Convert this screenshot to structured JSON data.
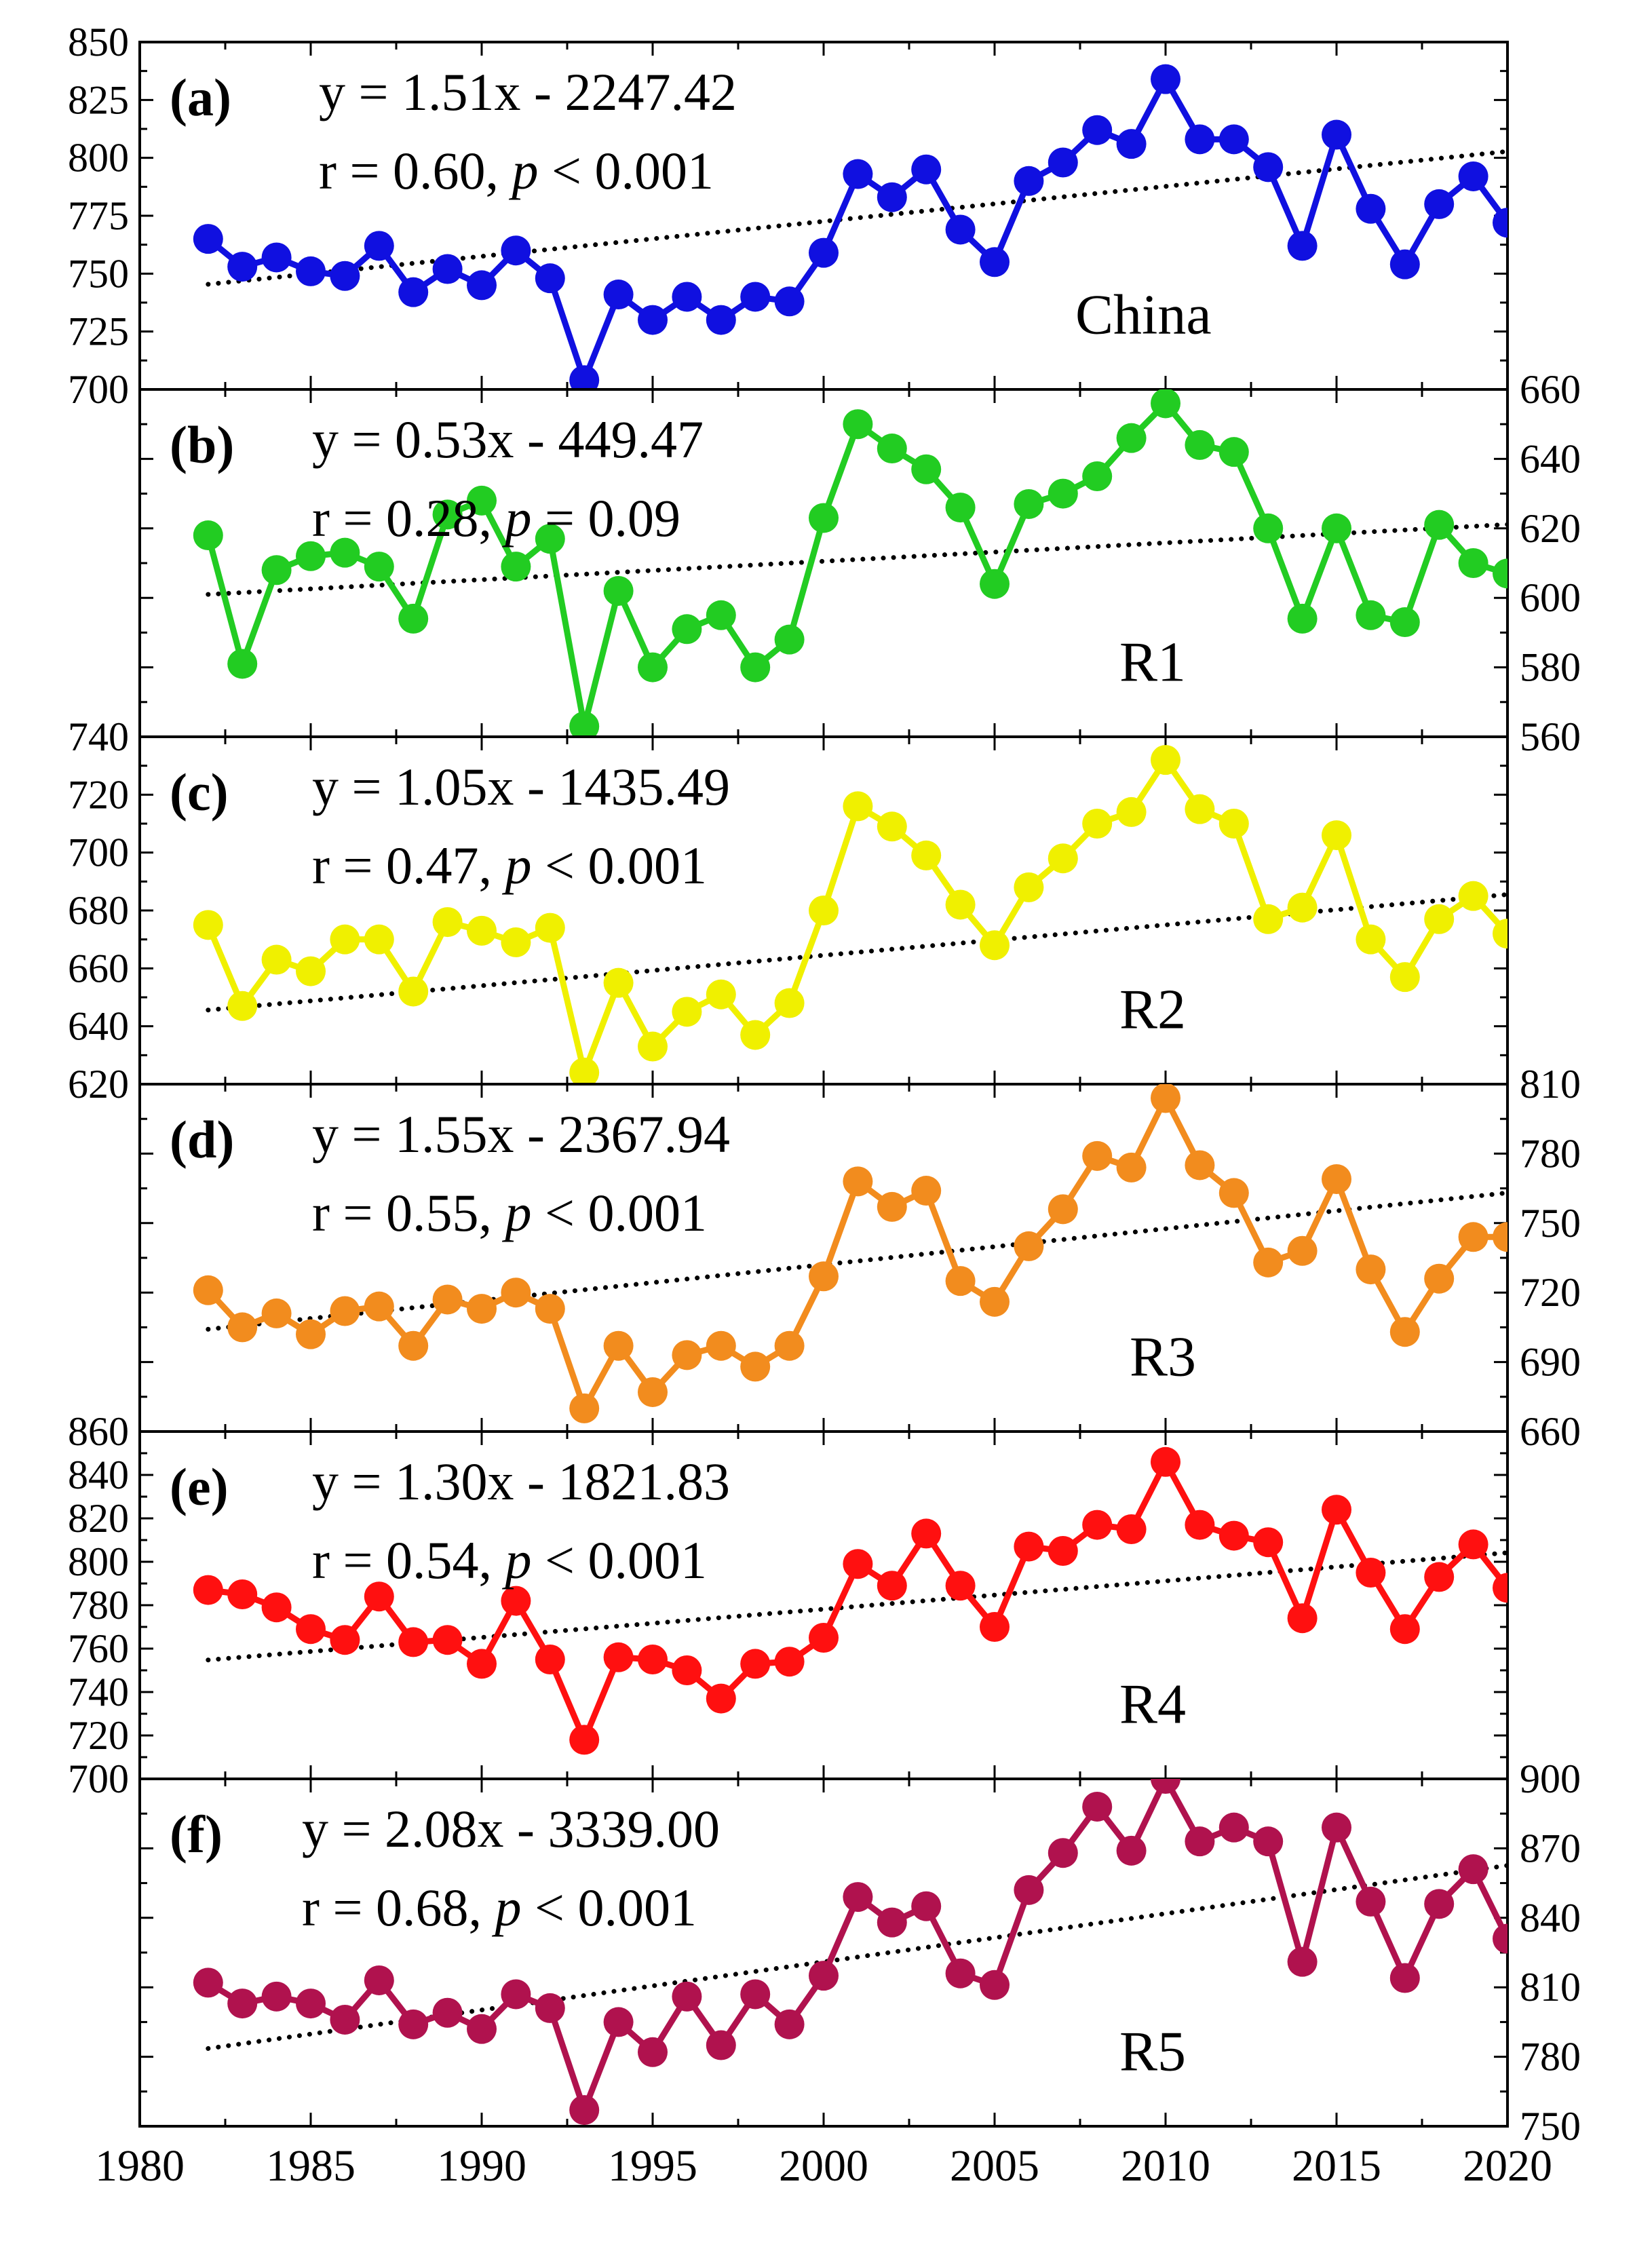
{
  "figure": {
    "x_axis": {
      "min": 1980,
      "max": 2020,
      "ticks": [
        1980,
        1985,
        1990,
        1995,
        2000,
        2005,
        2010,
        2015,
        2020
      ]
    }
  },
  "chart_data": [
    {
      "type": "scatter",
      "panel": "(a)",
      "region": "China",
      "color": "#1010e0",
      "axis_side": "left",
      "ylim": [
        700,
        850
      ],
      "yticks": [
        700,
        725,
        750,
        775,
        800,
        825,
        850
      ],
      "ytick_labels": [
        "700",
        "725",
        "750",
        "775",
        "800",
        "825",
        "850"
      ],
      "equation": "y = 1.51x - 2247.42",
      "r_text": "r = 0.60, ",
      "p_symbol": "p",
      "p_text": " < 0.001",
      "trend": {
        "slope": 1.51,
        "intercept": -2247.42
      },
      "x": [
        1982,
        1983,
        1984,
        1985,
        1986,
        1987,
        1988,
        1989,
        1990,
        1991,
        1992,
        1993,
        1994,
        1995,
        1996,
        1997,
        1998,
        1999,
        2000,
        2001,
        2002,
        2003,
        2004,
        2005,
        2006,
        2007,
        2008,
        2009,
        2010,
        2011,
        2012,
        2013,
        2014,
        2015,
        2016,
        2017,
        2018,
        2019,
        2020
      ],
      "y": [
        765,
        753,
        757,
        751,
        749,
        762,
        742,
        752,
        745,
        760,
        748,
        704,
        741,
        730,
        740,
        730,
        740,
        738,
        759,
        793,
        783,
        795,
        769,
        755,
        790,
        798,
        812,
        806,
        834,
        808,
        808,
        796,
        762,
        810,
        778,
        754,
        780,
        792,
        772
      ]
    },
    {
      "type": "scatter",
      "panel": "(b)",
      "region": "R1",
      "color": "#22cc22",
      "axis_side": "right",
      "ylim": [
        560,
        660
      ],
      "yticks": [
        560,
        580,
        600,
        620,
        640,
        660
      ],
      "ytick_labels": [
        "560",
        "580",
        "600",
        "620",
        "640",
        "660"
      ],
      "equation": "y = 0.53x - 449.47",
      "r_text": "r = 0.28, ",
      "p_symbol": "p",
      "p_text": " = 0.09",
      "trend": {
        "slope": 0.53,
        "intercept": -449.47
      },
      "x": [
        1982,
        1983,
        1984,
        1985,
        1986,
        1987,
        1988,
        1989,
        1990,
        1991,
        1992,
        1993,
        1994,
        1995,
        1996,
        1997,
        1998,
        1999,
        2000,
        2001,
        2002,
        2003,
        2004,
        2005,
        2006,
        2007,
        2008,
        2009,
        2010,
        2011,
        2012,
        2013,
        2014,
        2015,
        2016,
        2017,
        2018,
        2019,
        2020
      ],
      "y": [
        618,
        581,
        608,
        612,
        613,
        609,
        594,
        624,
        628,
        609,
        617,
        563,
        602,
        580,
        591,
        595,
        580,
        588,
        623,
        650,
        643,
        637,
        626,
        604,
        627,
        630,
        635,
        646,
        656,
        644,
        642,
        620,
        594,
        620,
        595,
        593,
        621,
        610,
        607
      ]
    },
    {
      "type": "scatter",
      "panel": "(c)",
      "region": "R2",
      "color": "#f0f000",
      "axis_side": "left",
      "ylim": [
        620,
        740
      ],
      "yticks": [
        620,
        640,
        660,
        680,
        700,
        720,
        740
      ],
      "ytick_labels": [
        "620",
        "640",
        "660",
        "680",
        "700",
        "720",
        "740"
      ],
      "equation": "y = 1.05x - 1435.49",
      "r_text": "r = 0.47, ",
      "p_symbol": "p",
      "p_text": " < 0.001",
      "trend": {
        "slope": 1.05,
        "intercept": -1435.49
      },
      "x": [
        1982,
        1983,
        1984,
        1985,
        1986,
        1987,
        1988,
        1989,
        1990,
        1991,
        1992,
        1993,
        1994,
        1995,
        1996,
        1997,
        1998,
        1999,
        2000,
        2001,
        2002,
        2003,
        2004,
        2005,
        2006,
        2007,
        2008,
        2009,
        2010,
        2011,
        2012,
        2013,
        2014,
        2015,
        2016,
        2017,
        2018,
        2019,
        2020
      ],
      "y": [
        675,
        647,
        663,
        659,
        670,
        670,
        652,
        676,
        673,
        669,
        674,
        624,
        655,
        633,
        645,
        651,
        637,
        648,
        680,
        716,
        709,
        699,
        682,
        668,
        688,
        698,
        710,
        714,
        732,
        715,
        710,
        677,
        681,
        706,
        670,
        657,
        677,
        685,
        672
      ]
    },
    {
      "type": "scatter",
      "panel": "(d)",
      "region": "R3",
      "color": "#f28c1e",
      "axis_side": "right",
      "ylim": [
        660,
        810
      ],
      "yticks": [
        660,
        690,
        720,
        750,
        780,
        810
      ],
      "ytick_labels": [
        "660",
        "690",
        "720",
        "750",
        "780",
        "810"
      ],
      "equation": "y = 1.55x - 2367.94",
      "r_text": "r = 0.55, ",
      "p_symbol": "p",
      "p_text": " < 0.001",
      "trend": {
        "slope": 1.55,
        "intercept": -2367.94
      },
      "x": [
        1982,
        1983,
        1984,
        1985,
        1986,
        1987,
        1988,
        1989,
        1990,
        1991,
        1992,
        1993,
        1994,
        1995,
        1996,
        1997,
        1998,
        1999,
        2000,
        2001,
        2002,
        2003,
        2004,
        2005,
        2006,
        2007,
        2008,
        2009,
        2010,
        2011,
        2012,
        2013,
        2014,
        2015,
        2016,
        2017,
        2018,
        2019,
        2020
      ],
      "y": [
        721,
        705,
        711,
        702,
        712,
        714,
        697,
        717,
        713,
        720,
        713,
        670,
        697,
        677,
        693,
        697,
        688,
        697,
        727,
        768,
        757,
        764,
        725,
        716,
        740,
        756,
        779,
        774,
        804,
        775,
        763,
        733,
        738,
        769,
        730,
        703,
        726,
        744,
        744
      ]
    },
    {
      "type": "scatter",
      "panel": "(e)",
      "region": "R4",
      "color": "#ff1010",
      "axis_side": "left",
      "ylim": [
        700,
        860
      ],
      "yticks": [
        700,
        720,
        740,
        760,
        780,
        800,
        820,
        840,
        860
      ],
      "ytick_labels": [
        "700",
        "720",
        "740",
        "760",
        "780",
        "800",
        "820",
        "840",
        "860"
      ],
      "equation": "y = 1.30x - 1821.83",
      "r_text": "r = 0.54, ",
      "p_symbol": "p",
      "p_text": " < 0.001",
      "trend": {
        "slope": 1.3,
        "intercept": -1821.83
      },
      "x": [
        1982,
        1983,
        1984,
        1985,
        1986,
        1987,
        1988,
        1989,
        1990,
        1991,
        1992,
        1993,
        1994,
        1995,
        1996,
        1997,
        1998,
        1999,
        2000,
        2001,
        2002,
        2003,
        2004,
        2005,
        2006,
        2007,
        2008,
        2009,
        2010,
        2011,
        2012,
        2013,
        2014,
        2015,
        2016,
        2017,
        2018,
        2019,
        2020
      ],
      "y": [
        787,
        785,
        779,
        769,
        764,
        784,
        763,
        764,
        753,
        782,
        755,
        718,
        756,
        755,
        750,
        737,
        753,
        754,
        765,
        799,
        789,
        813,
        789,
        770,
        807,
        805,
        817,
        815,
        846,
        817,
        812,
        809,
        774,
        824,
        795,
        769,
        793,
        808,
        788
      ]
    },
    {
      "type": "scatter",
      "panel": "(f)",
      "region": "R5",
      "color": "#b0124e",
      "axis_side": "right",
      "ylim": [
        750,
        900
      ],
      "yticks": [
        750,
        780,
        810,
        840,
        870,
        900
      ],
      "ytick_labels": [
        "750",
        "780",
        "810",
        "840",
        "870",
        "900"
      ],
      "equation": "y = 2.08x - 3339.00",
      "r_text": "r = 0.68, ",
      "p_symbol": "p",
      "p_text": " < 0.001",
      "trend": {
        "slope": 2.08,
        "intercept": -3339.0
      },
      "x": [
        1982,
        1983,
        1984,
        1985,
        1986,
        1987,
        1988,
        1989,
        1990,
        1991,
        1992,
        1993,
        1994,
        1995,
        1996,
        1997,
        1998,
        1999,
        2000,
        2001,
        2002,
        2003,
        2004,
        2005,
        2006,
        2007,
        2008,
        2009,
        2010,
        2011,
        2012,
        2013,
        2014,
        2015,
        2016,
        2017,
        2018,
        2019,
        2020
      ],
      "y": [
        812,
        803,
        806,
        803,
        796,
        813,
        794,
        799,
        792,
        807,
        801,
        757,
        795,
        782,
        806,
        785,
        807,
        794,
        815,
        849,
        838,
        845,
        816,
        811,
        852,
        868,
        888,
        869,
        900,
        873,
        879,
        873,
        821,
        879,
        847,
        814,
        846,
        861,
        831
      ]
    }
  ]
}
